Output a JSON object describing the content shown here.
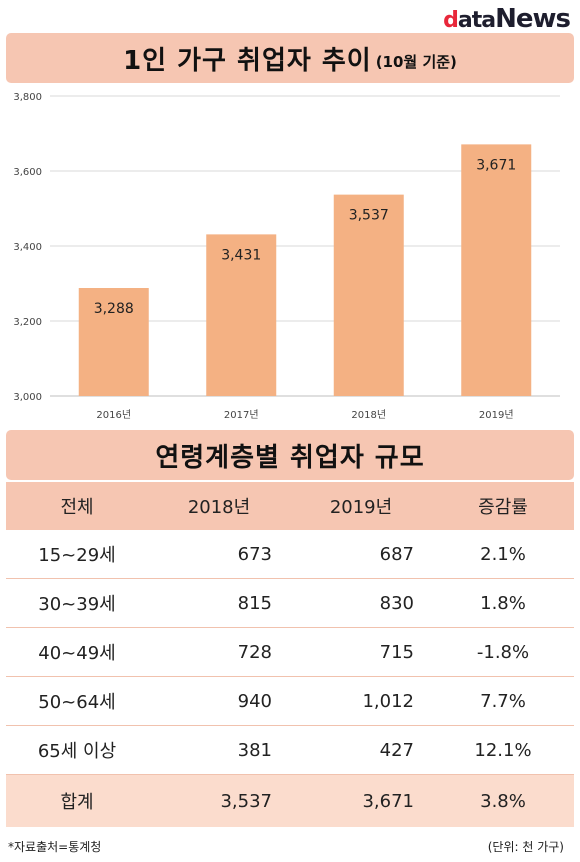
{
  "logo": {
    "d": "d",
    "ata": "ata",
    "news": "News"
  },
  "title": {
    "main": "1인 가구 취업자 추이",
    "sub": "(10월 기준)"
  },
  "chart_data": {
    "type": "bar",
    "categories": [
      "2016년",
      "2017년",
      "2018년",
      "2019년"
    ],
    "values": [
      3288,
      3431,
      3537,
      3671
    ],
    "value_labels": [
      "3,288",
      "3,431",
      "3,537",
      "3,671"
    ],
    "ylim": [
      3000,
      3800
    ],
    "yticks": [
      3000,
      3200,
      3400,
      3600,
      3800
    ],
    "ytick_labels": [
      "3,000",
      "3,200",
      "3,400",
      "3,600",
      "3,800"
    ],
    "grid": true,
    "bar_color": "#f4b183"
  },
  "table_title": "연령계층별 취업자 규모",
  "table": {
    "headers": [
      "전체",
      "2018년",
      "2019년",
      "증감률"
    ],
    "rows": [
      [
        "15~29세",
        "673",
        "687",
        "2.1%"
      ],
      [
        "30~39세",
        "815",
        "830",
        "1.8%"
      ],
      [
        "40~49세",
        "728",
        "715",
        "-1.8%"
      ],
      [
        "50~64세",
        "940",
        "1,012",
        "7.7%"
      ],
      [
        "65세 이상",
        "381",
        "427",
        "12.1%"
      ]
    ],
    "total": [
      "합계",
      "3,537",
      "3,671",
      "3.8%"
    ]
  },
  "footer": {
    "source": "*자료출처=통계청",
    "unit": "(단위: 천 가구)"
  }
}
